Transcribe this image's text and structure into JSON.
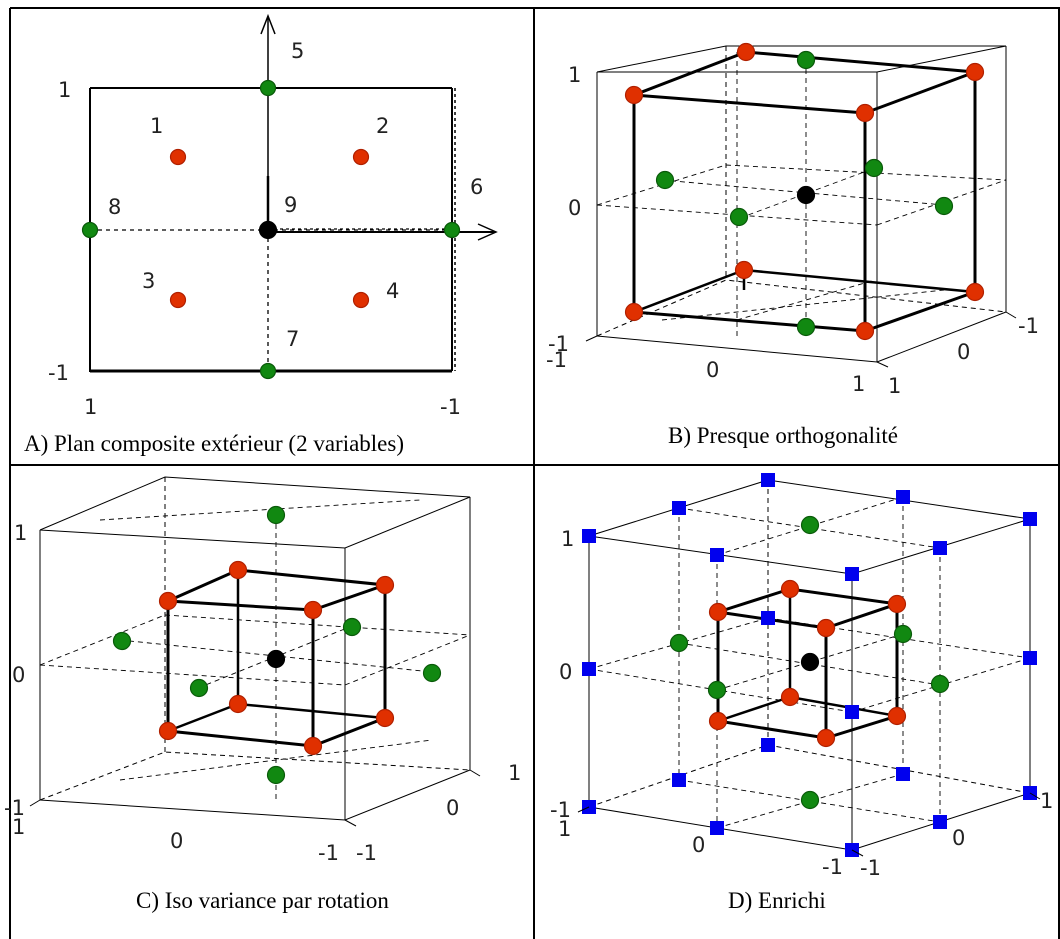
{
  "panels": {
    "a": {
      "caption": "A) Plan composite extérieur (2 variables)",
      "ticks": {
        "y_top": "1",
        "y_bottom": "-1",
        "x_left": "1",
        "x_right": "-1"
      },
      "point_labels": [
        "1",
        "2",
        "3",
        "4",
        "5",
        "6",
        "7",
        "8",
        "9"
      ]
    },
    "b": {
      "caption": "B) Presque orthogonalité",
      "ticks": {
        "v_top": "1",
        "v_mid": "0",
        "v_bottom": "-1",
        "front_left": "-1",
        "front_mid": "0",
        "front_right": "1",
        "side_near": "1",
        "side_mid": "0",
        "side_far": "-1"
      }
    },
    "c": {
      "caption": "C) Iso variance par rotation",
      "ticks": {
        "v_top": "1",
        "v_mid": "0",
        "v_bottom": "-1",
        "front_left": "1",
        "front_mid": "0",
        "front_right": "-1",
        "side_near": "-1",
        "side_mid": "0",
        "side_far": "1"
      }
    },
    "d": {
      "caption": "D) Enrichi",
      "ticks": {
        "v_top": "1",
        "v_mid": "0",
        "v_bottom": "-1",
        "front_left": "1",
        "front_mid": "0",
        "front_right": "-1",
        "side_near": "-1",
        "side_mid": "0",
        "side_far": "1"
      }
    }
  },
  "colors": {
    "factorial_point": "#e03000",
    "axial_point": "#118811",
    "center_point": "#000000",
    "extra_point": "#0000ee",
    "frame": "#000000",
    "grid": "#000000"
  }
}
